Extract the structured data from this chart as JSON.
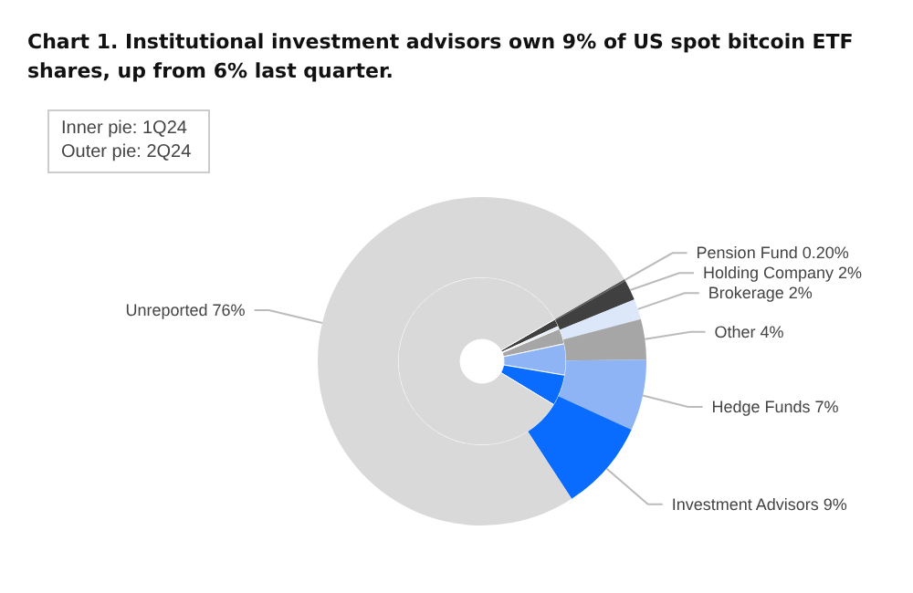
{
  "chart_data": {
    "type": "donut",
    "title": "Chart 1. Institutional investment advisors own 9% of US spot bitcoin ETF shares, up from 6% last quarter.",
    "annotations": [
      "Inner pie: 1Q24",
      "Outer pie: 2Q24"
    ],
    "categories": [
      "Pension Fund",
      "Holding Company",
      "Brokerage",
      "Other",
      "Hedge Funds",
      "Investment Advisors",
      "Unreported"
    ],
    "series": [
      {
        "values": [
          null,
          1.5,
          0.5,
          3,
          6,
          6,
          83
        ],
        "colors": [
          "#595959",
          "#404040",
          "#dce8fa",
          "#a6a6a6",
          "#8fb4f5",
          "#0a6cff",
          "#d9d9d9"
        ]
      },
      {
        "values": [
          0.2,
          2,
          2,
          4,
          7,
          9,
          76
        ],
        "colors": [
          "#595959",
          "#404040",
          "#dce8fa",
          "#a6a6a6",
          "#8fb4f5",
          "#0a6cff",
          "#d9d9d9"
        ],
        "value_labels": [
          "0.20%",
          "2%",
          "2%",
          "4%",
          "7%",
          "9%",
          "76%"
        ]
      }
    ],
    "legend": false
  }
}
